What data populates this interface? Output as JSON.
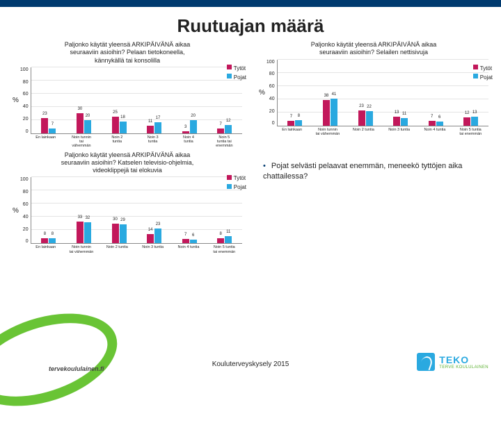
{
  "title": "Ruutuajan määrä",
  "colors": {
    "tytot": "#c2185b",
    "pojat": "#2aa9e0",
    "grid": "#e4e4e4"
  },
  "axis": {
    "ymax": 100,
    "yticks": [
      100,
      80,
      60,
      40,
      20,
      0
    ],
    "ylabel": "%"
  },
  "categories": [
    "En lainkaan",
    "Noin tunnin\ntai\nvähemmän",
    "Noin 2\ntuntia",
    "Noin 3\ntuntia",
    "Noin 4\ntuntia",
    "Noin 5\ntuntia tai\nenemmän"
  ],
  "categories_short": [
    "En lainkaan",
    "Noin tunnin\ntai vähemmän",
    "Noin 2 tuntia",
    "Noin 3 tuntia",
    "Noin 4 tuntia",
    "Noin 5 tuntia\ntai enemmän"
  ],
  "legend": [
    "Tytöt",
    "Pojat"
  ],
  "charts": {
    "c1": {
      "subtitle": "Paljonko käytät yleensä ARKIPÄIVÄNÄ aikaa\nseuraaviin asioihin? Pelaan tietokoneella,\nkännykällä tai konsolilla",
      "tytot": [
        23,
        30,
        25,
        11,
        3,
        7
      ],
      "pojat": [
        7,
        20,
        18,
        17,
        20,
        12
      ]
    },
    "c2": {
      "subtitle": "Paljonko käytät yleensä ARKIPÄIVÄNÄ aikaa\nseuraaviin asioihin? Selailen nettisivuja",
      "tytot": [
        7,
        38,
        23,
        13,
        7,
        12
      ],
      "pojat": [
        8,
        41,
        22,
        11,
        6,
        13
      ]
    },
    "c3": {
      "subtitle": "Paljonko käytät yleensä ARKIPÄIVÄNÄ aikaa\nseuraaviin asioihin? Katselen televisio-ohjelmia,\nvideoklippejä tai elokuvia",
      "tytot": [
        8,
        33,
        30,
        14,
        7,
        8
      ],
      "pojat": [
        8,
        32,
        29,
        23,
        6,
        11
      ]
    }
  },
  "bullet": "Pojat selvästi pelaavat enemmän, meneekö tyttöjen aika chattailessa?",
  "source": "Kouluterveyskysely 2015",
  "brand_left": "tervekoululainen.fi",
  "brand_right": {
    "name": "TEKO",
    "sub": "TERVE KOULULAINEN"
  }
}
